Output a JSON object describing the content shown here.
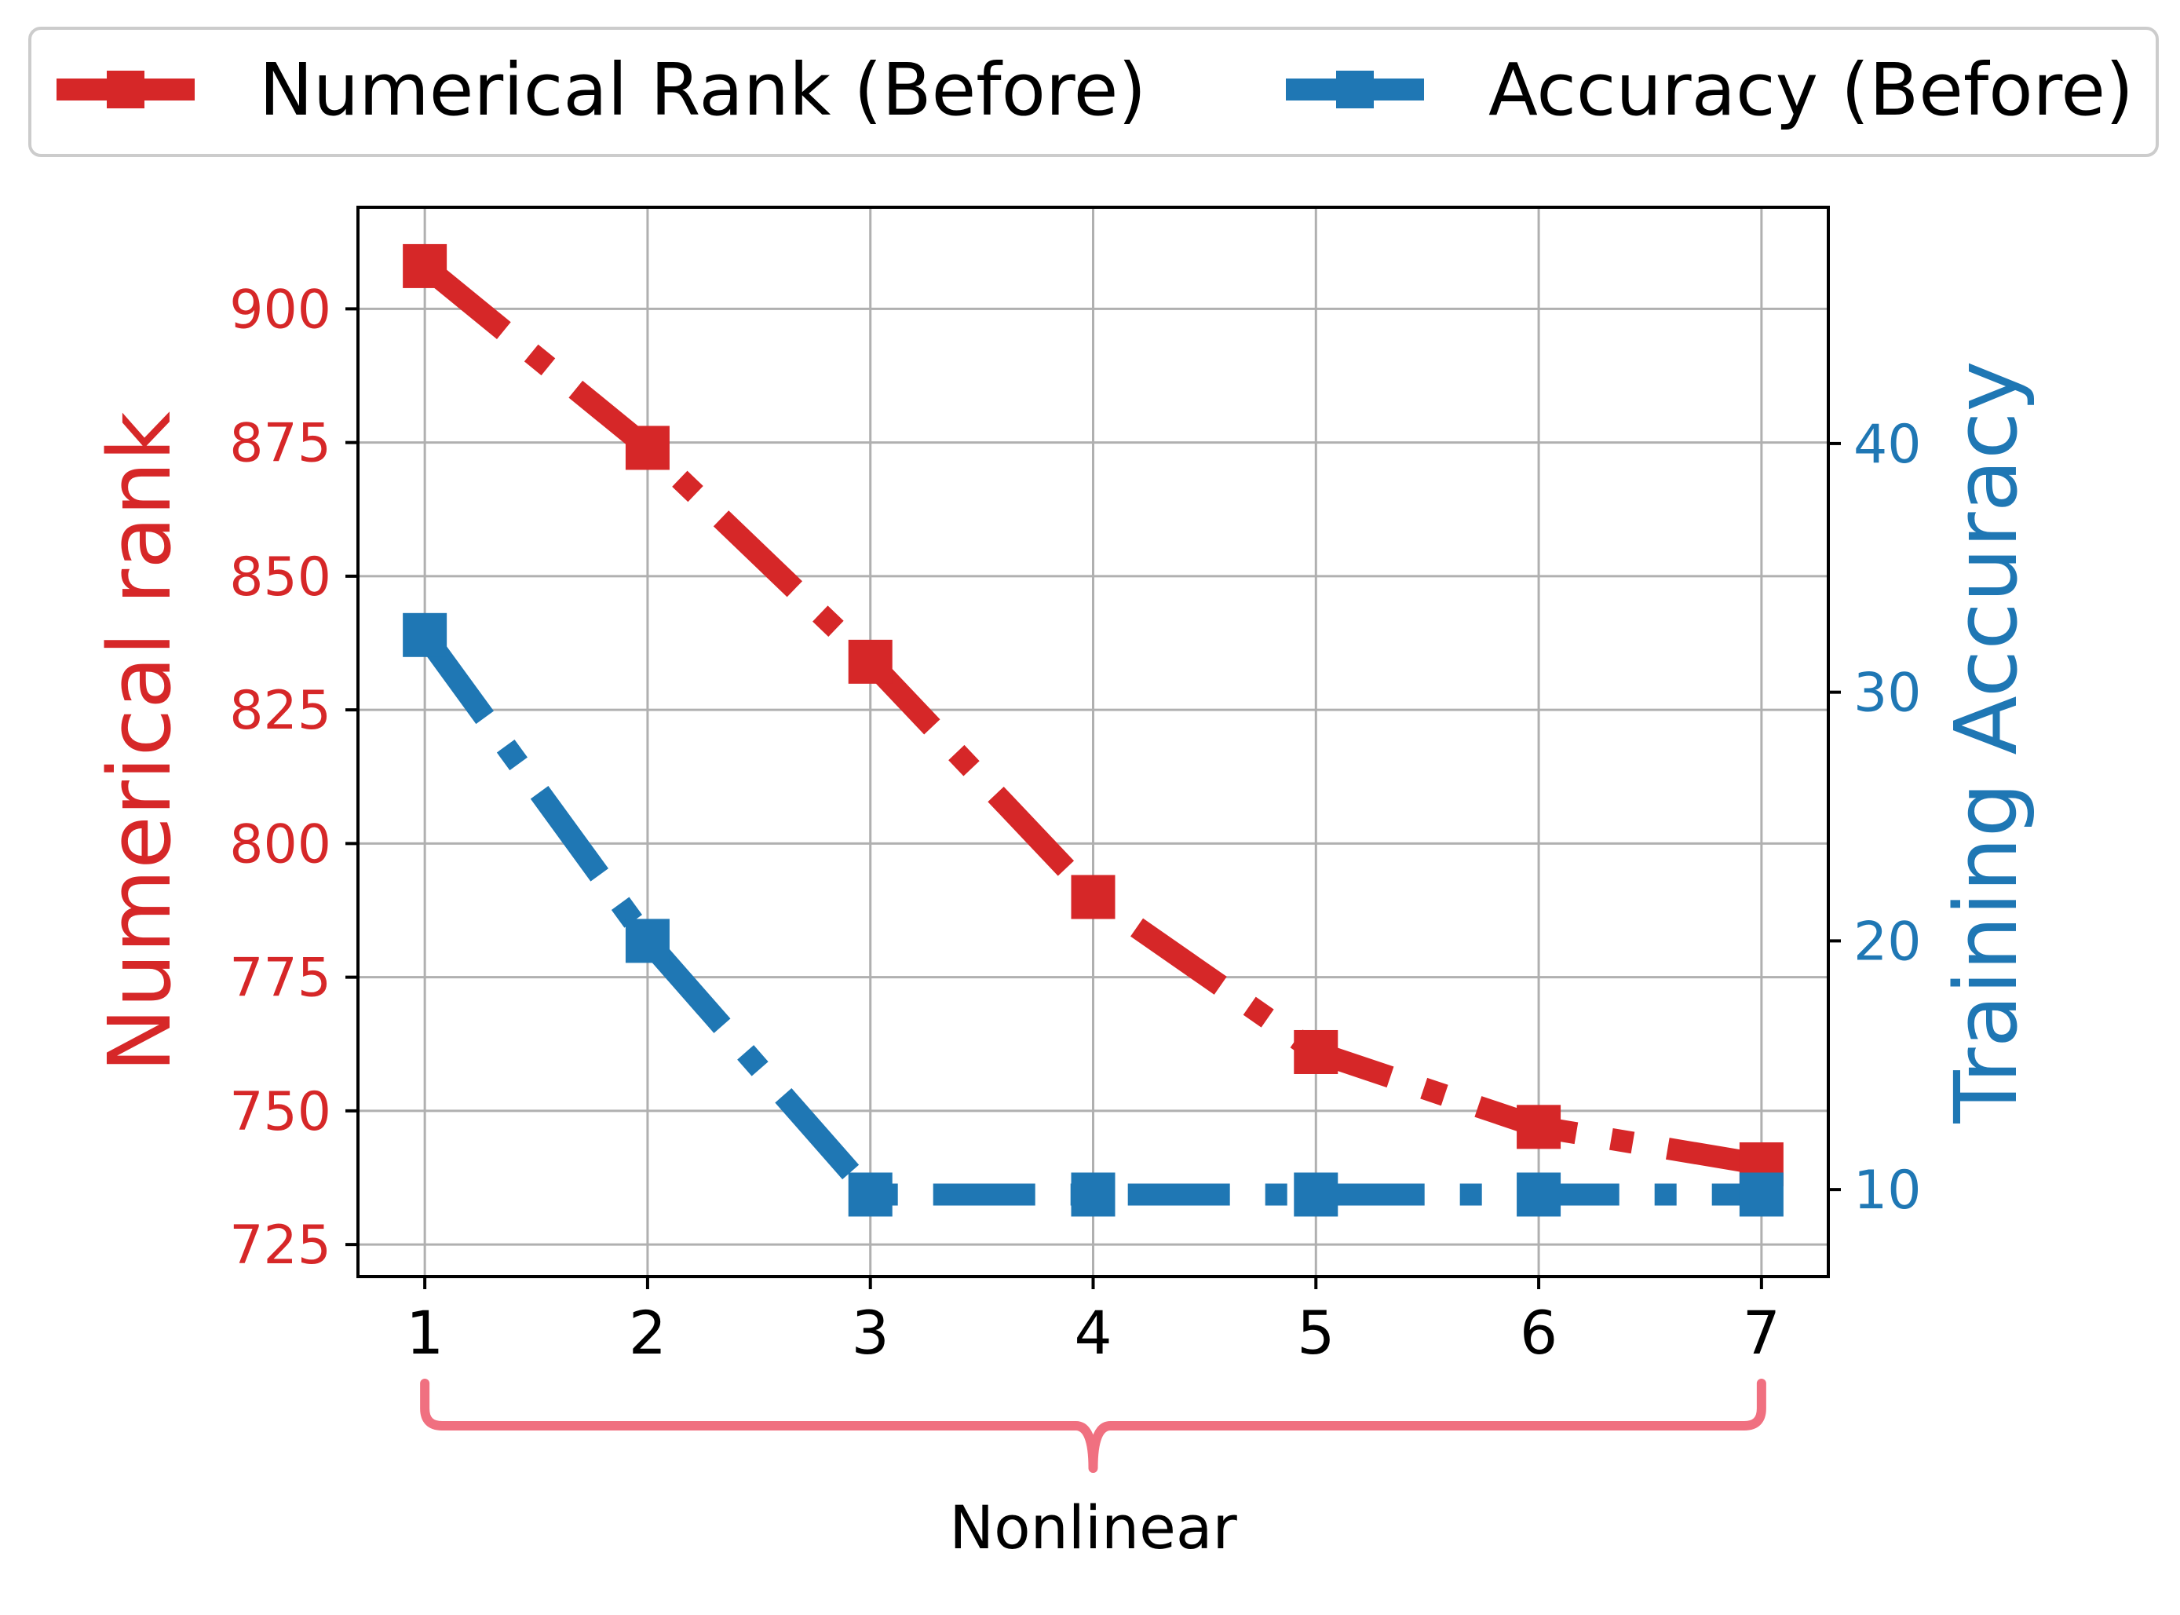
{
  "chart_data": {
    "type": "line",
    "x": [
      1,
      2,
      3,
      4,
      5,
      6,
      7
    ],
    "xlim": [
      0.7,
      7.3
    ],
    "x_ticks": [
      "1",
      "2",
      "3",
      "4",
      "5",
      "6",
      "7"
    ],
    "series": [
      {
        "name": "Numerical Rank (Before)",
        "axis": "left",
        "color": "#d62728",
        "marker": "square",
        "linestyle": "dashdot",
        "values": [
          908,
          874,
          834,
          790,
          761,
          747,
          740
        ]
      },
      {
        "name": "Accuracy (Before)",
        "axis": "right",
        "color": "#1f77b4",
        "marker": "square",
        "linestyle": "dashdot",
        "values": [
          32.3,
          20.0,
          9.8,
          9.8,
          9.8,
          9.8,
          9.8
        ]
      }
    ],
    "y_left": {
      "label": "Numerical rank",
      "color": "#d62728",
      "ticks": [
        725,
        750,
        775,
        800,
        825,
        850,
        875,
        900
      ],
      "lim": [
        719,
        919
      ]
    },
    "y_right": {
      "label": "Training Accuracy",
      "color": "#1f77b4",
      "ticks": [
        10,
        20,
        30,
        40
      ],
      "lim": [
        6.5,
        49.5
      ]
    },
    "grid": true,
    "legend": {
      "placement": "top",
      "columns": 2
    },
    "annotation": {
      "type": "brace",
      "from_x": 1,
      "to_x": 7,
      "label": "Nonlinear",
      "color": "#f07080"
    }
  }
}
